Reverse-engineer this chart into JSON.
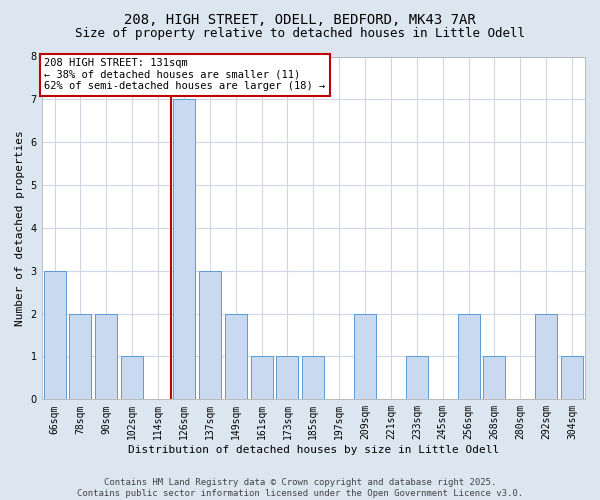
{
  "title_line1": "208, HIGH STREET, ODELL, BEDFORD, MK43 7AR",
  "title_line2": "Size of property relative to detached houses in Little Odell",
  "xlabel": "Distribution of detached houses by size in Little Odell",
  "ylabel": "Number of detached properties",
  "categories": [
    "66sqm",
    "78sqm",
    "90sqm",
    "102sqm",
    "114sqm",
    "126sqm",
    "137sqm",
    "149sqm",
    "161sqm",
    "173sqm",
    "185sqm",
    "197sqm",
    "209sqm",
    "221sqm",
    "233sqm",
    "245sqm",
    "256sqm",
    "268sqm",
    "280sqm",
    "292sqm",
    "304sqm"
  ],
  "values": [
    3,
    2,
    2,
    1,
    0,
    7,
    3,
    2,
    1,
    1,
    1,
    0,
    2,
    0,
    1,
    0,
    2,
    1,
    0,
    2,
    1
  ],
  "bar_color": "#c9d9f0",
  "bar_edge_color": "#5b9bd5",
  "highlight_index": 5,
  "red_line_x": 4.5,
  "red_line_color": "#c00000",
  "ylim": [
    0,
    8
  ],
  "yticks": [
    0,
    1,
    2,
    3,
    4,
    5,
    6,
    7,
    8
  ],
  "grid_color": "#d0d8e8",
  "background_color": "#dce6f1",
  "plot_bg_color": "#ffffff",
  "annotation_text": "208 HIGH STREET: 131sqm\n← 38% of detached houses are smaller (11)\n62% of semi-detached houses are larger (18) →",
  "annotation_box_color": "#ffffff",
  "annotation_box_edge": "#c00000",
  "footer_line1": "Contains HM Land Registry data © Crown copyright and database right 2025.",
  "footer_line2": "Contains public sector information licensed under the Open Government Licence v3.0.",
  "title_fontsize": 10,
  "subtitle_fontsize": 9,
  "axis_label_fontsize": 8,
  "tick_fontsize": 7,
  "annotation_fontsize": 7.5,
  "footer_fontsize": 6.5
}
